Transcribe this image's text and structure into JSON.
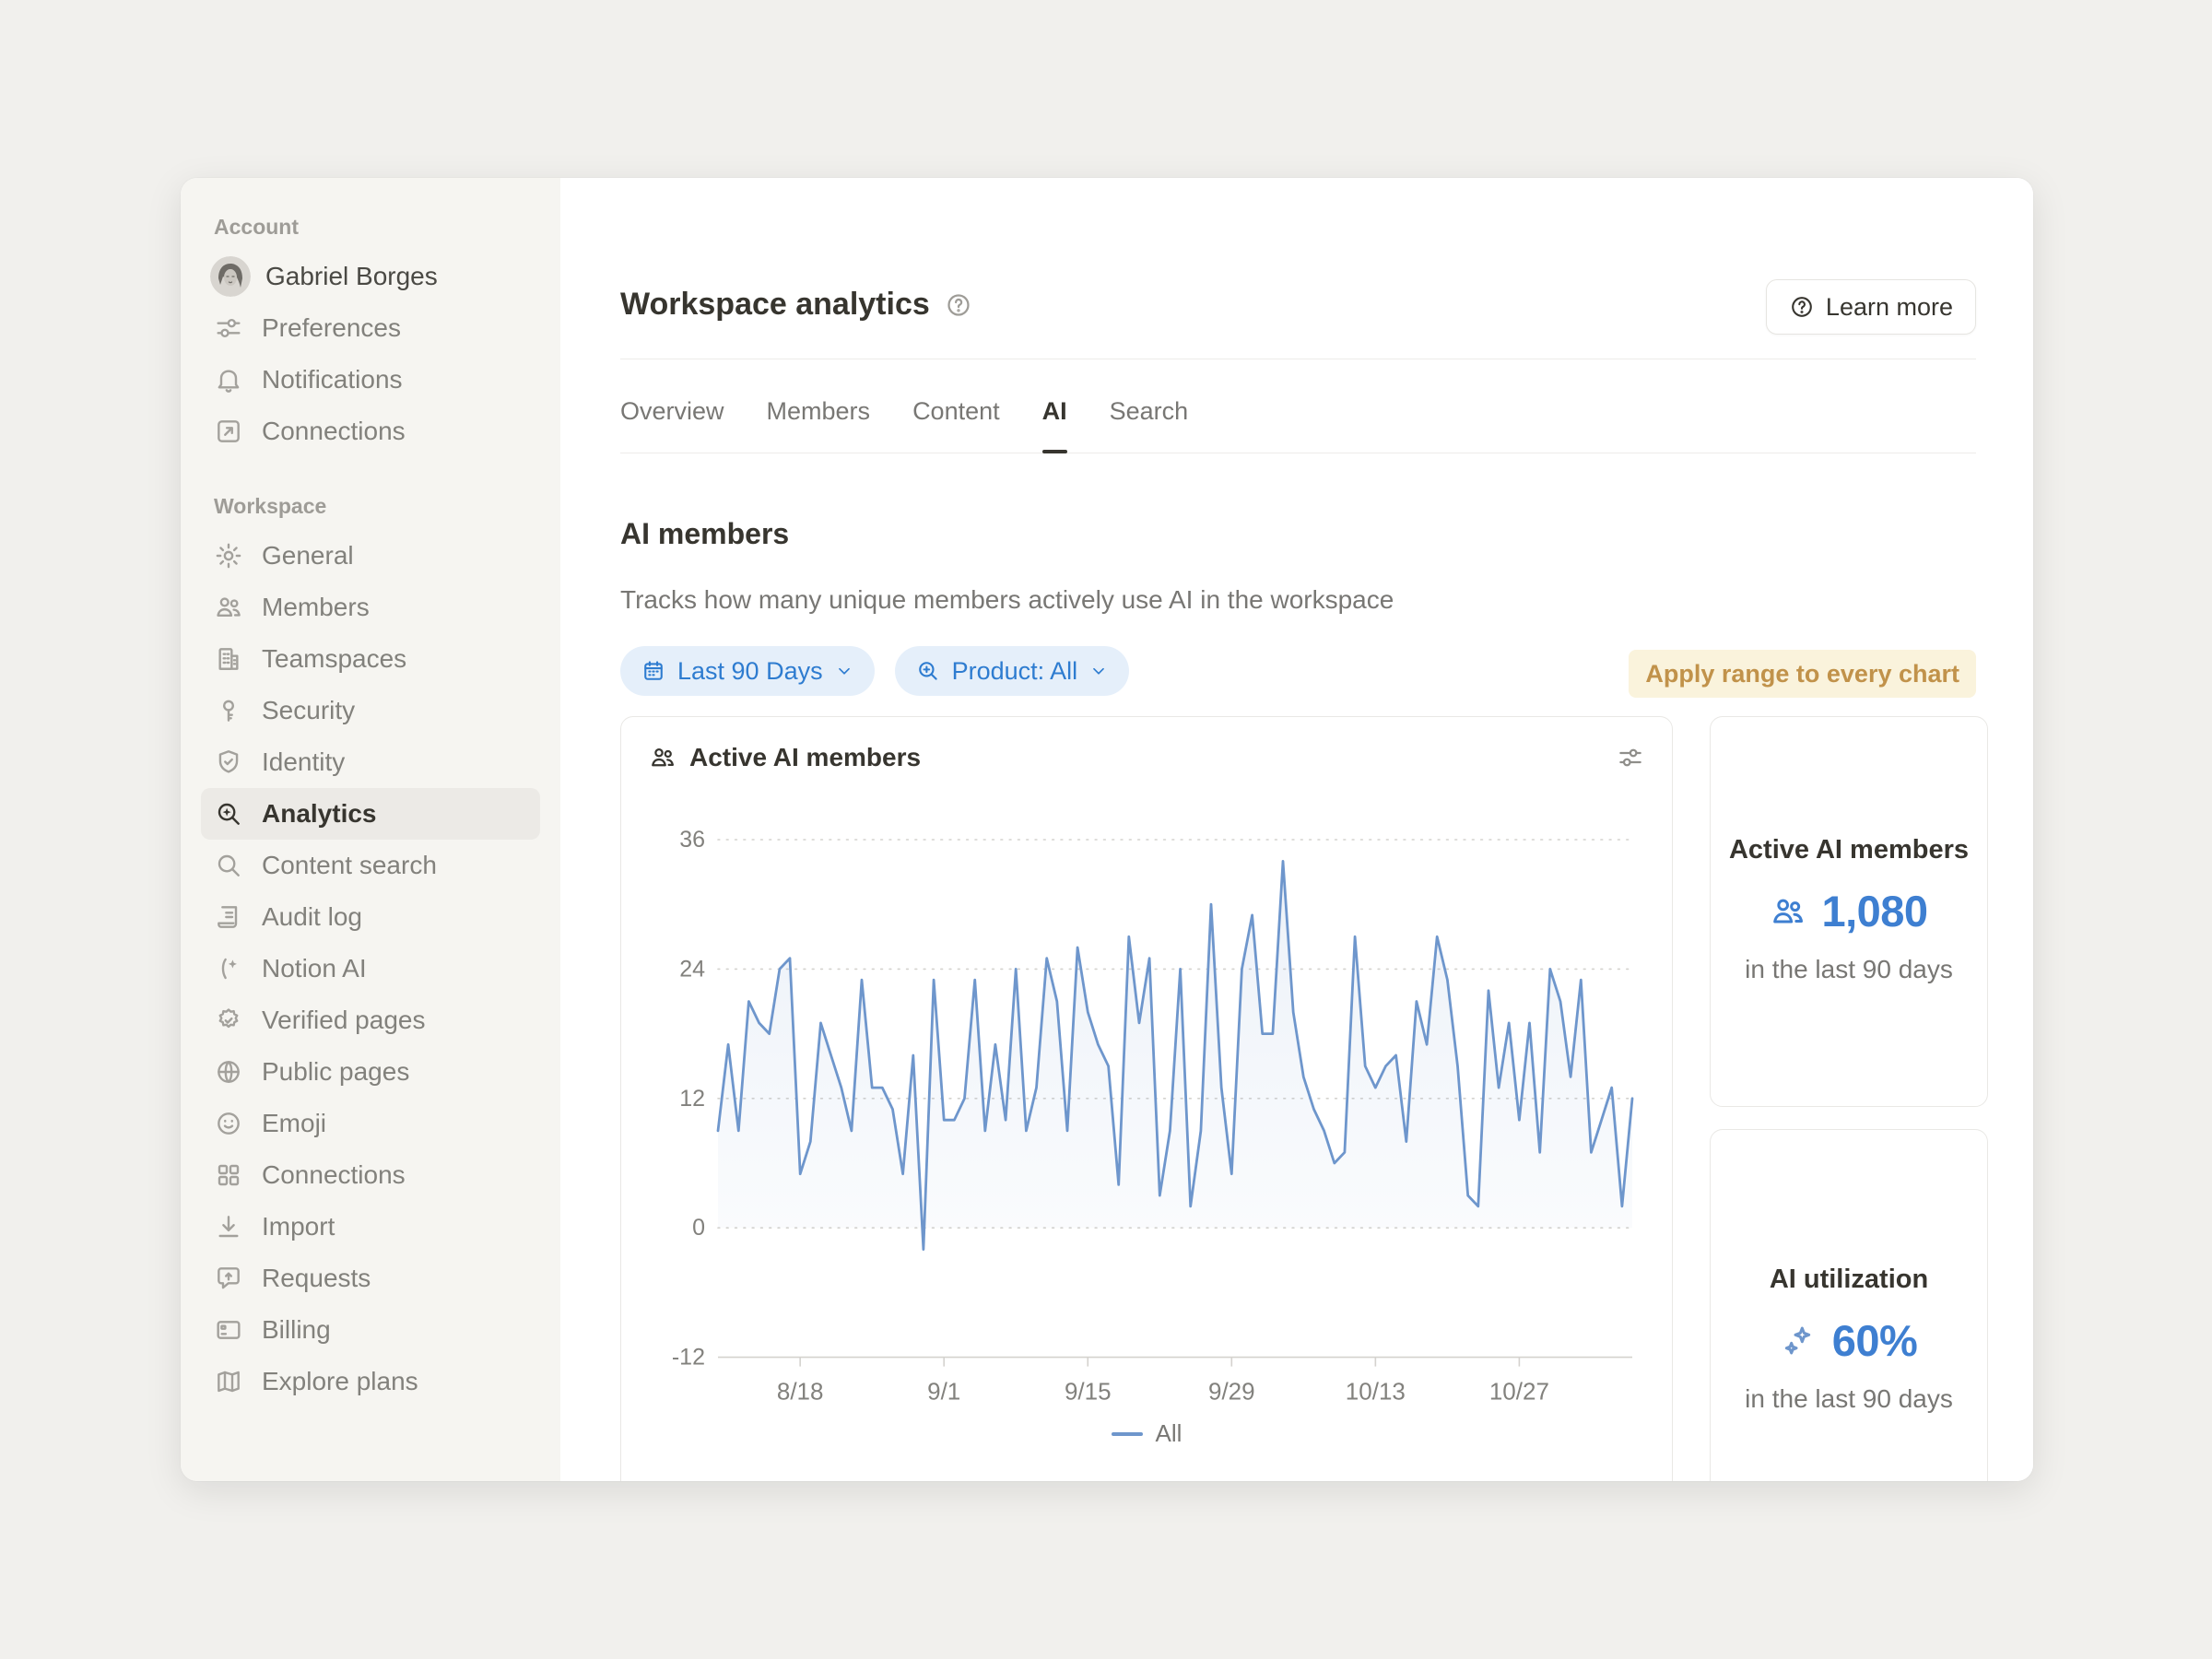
{
  "colors": {
    "backdrop": "#F1F0ED",
    "sidebar_bg": "#F6F5F1",
    "text_dark": "#37352F",
    "text_gray": "#787774",
    "accent_blue": "#3E7FD1",
    "pill_bg": "#E5EFFA",
    "pill_text": "#2E7CD0",
    "apply_bg": "#FAF3DC",
    "apply_text": "#C1924A",
    "line_blue": "#6E96CC",
    "grid_gray": "#D4D2CE"
  },
  "sidebar": {
    "sections": [
      {
        "label": "Account",
        "items": [
          {
            "label": "Gabriel Borges"
          },
          {
            "label": "Preferences"
          },
          {
            "label": "Notifications"
          },
          {
            "label": "Connections"
          }
        ]
      },
      {
        "label": "Workspace",
        "items": [
          {
            "label": "General"
          },
          {
            "label": "Members"
          },
          {
            "label": "Teamspaces"
          },
          {
            "label": "Security"
          },
          {
            "label": "Identity"
          },
          {
            "label": "Analytics",
            "active": true
          },
          {
            "label": "Content search"
          },
          {
            "label": "Audit log"
          },
          {
            "label": "Notion AI"
          },
          {
            "label": "Verified pages"
          },
          {
            "label": "Public pages"
          },
          {
            "label": "Emoji"
          },
          {
            "label": "Connections"
          },
          {
            "label": "Import"
          },
          {
            "label": "Requests"
          },
          {
            "label": "Billing"
          },
          {
            "label": "Explore plans"
          }
        ]
      }
    ]
  },
  "header": {
    "title": "Workspace analytics",
    "learn_more_label": "Learn more"
  },
  "tabs": [
    {
      "label": "Overview"
    },
    {
      "label": "Members"
    },
    {
      "label": "Content"
    },
    {
      "label": "AI",
      "active": true
    },
    {
      "label": "Search"
    }
  ],
  "section": {
    "title": "AI members",
    "description": "Tracks how many unique members actively use AI in the workspace"
  },
  "filters": {
    "date_range_label": "Last 90 Days",
    "product_label": "Product: All",
    "apply_label": "Apply range to every chart"
  },
  "chart_card": {
    "title": "Active AI members"
  },
  "chart_data": {
    "type": "line",
    "title": "Active AI members",
    "xlabel": "",
    "ylabel": "",
    "ylim": [
      -12,
      36
    ],
    "yticks": [
      36,
      24,
      12,
      0,
      -12
    ],
    "grid": "dotted horizontal gridlines at 0, 12, 24, 36; solid axis at -12",
    "legend_position": "bottom",
    "x_tick_labels": [
      "8/18",
      "9/1",
      "9/15",
      "9/29",
      "10/13",
      "10/27"
    ],
    "x_tick_indices": [
      8,
      22,
      36,
      50,
      64,
      78
    ],
    "series": [
      {
        "name": "All",
        "color": "#6E96CC",
        "values": [
          9,
          17,
          9,
          21,
          19,
          18,
          24,
          25,
          5,
          8,
          19,
          16,
          13,
          9,
          23,
          13,
          13,
          11,
          5,
          16,
          -2,
          23,
          10,
          10,
          12,
          23,
          9,
          17,
          10,
          24,
          9,
          13,
          25,
          21,
          9,
          26,
          20,
          17,
          15,
          4,
          27,
          19,
          25,
          3,
          9,
          24,
          2,
          9,
          30,
          13,
          5,
          24,
          29,
          18,
          18,
          34,
          20,
          14,
          11,
          9,
          6,
          7,
          27,
          15,
          13,
          15,
          16,
          8,
          21,
          17,
          27,
          23,
          15,
          3,
          2,
          22,
          13,
          19,
          10,
          19,
          7,
          24,
          21,
          14,
          23,
          7,
          10,
          13,
          2,
          12
        ]
      }
    ]
  },
  "stats": [
    {
      "title": "Active AI members",
      "value": "1,080",
      "caption": "in the last 90 days"
    },
    {
      "title": "AI utilization",
      "value": "60%",
      "caption": "in the last 90 days"
    }
  ]
}
